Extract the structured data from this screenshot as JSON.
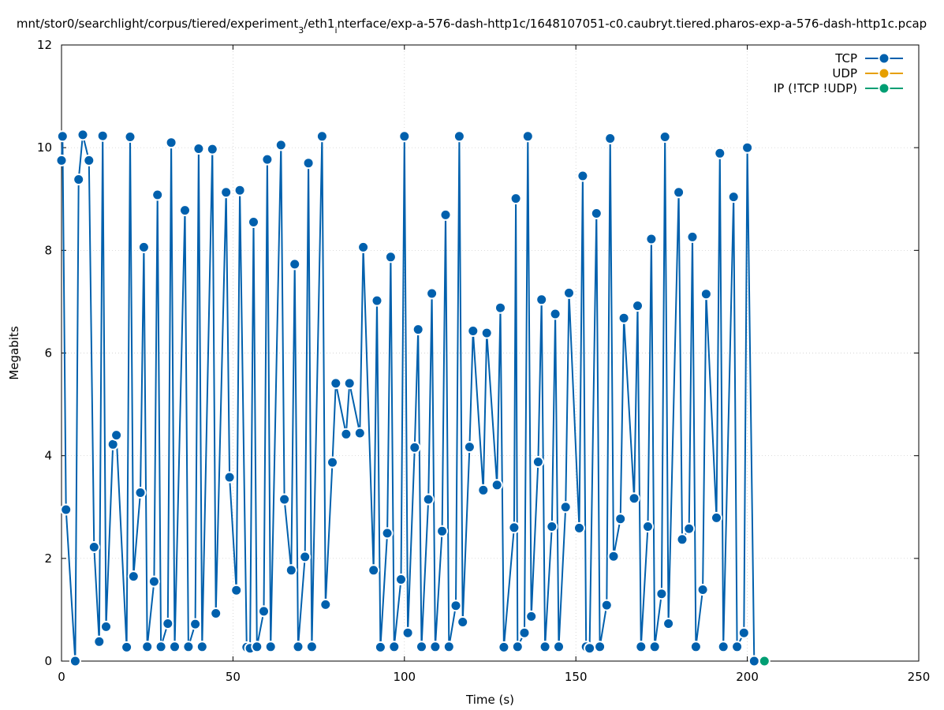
{
  "chart_data": {
    "type": "line",
    "title": "mnt/stor0/searchlight/corpus/tiered/experiment_3/eth1_interface/exp-a-576-dash-http1c/1648107051-c0.caubryt.tiered.pharos-exp-a-576-dash-http1c.pcap",
    "title_parts": {
      "pre": "mnt/stor0/searchlight/corpus/tiered/experiment",
      "sub1": "3",
      "mid": "/eth1",
      "sub2": "i",
      "post": "nterface/exp-a-576-dash-http1c/1648107051-c0.caubryt.tiered.pharos-exp-a-576-dash-http1c.pcap"
    },
    "xlabel": "Time (s)",
    "ylabel": "Megabits",
    "xlim": [
      0,
      250
    ],
    "ylim": [
      0,
      12
    ],
    "x_ticks": [
      "0",
      "50",
      "100",
      "150",
      "200",
      "250"
    ],
    "y_ticks": [
      "0",
      "2",
      "4",
      "6",
      "8",
      "10",
      "12"
    ],
    "grid": true,
    "legend_position": "top-right",
    "series": [
      {
        "name": "TCP",
        "color": "#0060ad",
        "points": [
          [
            0,
            9.75
          ],
          [
            0.3,
            10.22
          ],
          [
            1.3,
            2.95
          ],
          [
            4,
            0
          ],
          [
            5,
            9.38
          ],
          [
            6.2,
            10.25
          ],
          [
            8,
            9.75
          ],
          [
            9.5,
            2.22
          ],
          [
            11,
            0.38
          ],
          [
            12,
            10.23
          ],
          [
            13,
            0.67
          ],
          [
            15,
            4.22
          ],
          [
            16,
            4.4
          ],
          [
            19,
            0.27
          ],
          [
            20,
            10.21
          ],
          [
            21,
            1.65
          ],
          [
            23,
            3.28
          ],
          [
            24,
            8.06
          ],
          [
            25,
            0.28
          ],
          [
            27,
            1.55
          ],
          [
            28,
            9.08
          ],
          [
            29,
            0.28
          ],
          [
            31,
            0.73
          ],
          [
            32,
            10.1
          ],
          [
            33,
            0.28
          ],
          [
            36,
            8.78
          ],
          [
            37,
            0.28
          ],
          [
            39,
            0.72
          ],
          [
            40,
            9.98
          ],
          [
            41,
            0.28
          ],
          [
            44,
            9.97
          ],
          [
            45,
            0.93
          ],
          [
            48,
            9.13
          ],
          [
            49,
            3.58
          ],
          [
            51,
            1.38
          ],
          [
            52,
            9.17
          ],
          [
            54,
            0.27
          ],
          [
            55,
            0.25
          ],
          [
            56,
            8.55
          ],
          [
            57,
            0.28
          ],
          [
            59,
            0.97
          ],
          [
            60,
            9.77
          ],
          [
            61,
            0.28
          ],
          [
            64,
            10.05
          ],
          [
            65,
            3.15
          ],
          [
            67,
            1.77
          ],
          [
            68,
            7.73
          ],
          [
            69,
            0.28
          ],
          [
            71,
            2.03
          ],
          [
            72,
            9.7
          ],
          [
            73,
            0.28
          ],
          [
            76,
            10.22
          ],
          [
            77,
            1.1
          ],
          [
            79,
            3.87
          ],
          [
            80,
            5.41
          ],
          [
            83,
            4.42
          ],
          [
            84,
            5.41
          ],
          [
            87,
            4.44
          ],
          [
            88,
            8.06
          ],
          [
            91,
            1.77
          ],
          [
            92,
            7.02
          ],
          [
            93,
            0.27
          ],
          [
            95,
            2.49
          ],
          [
            96,
            7.87
          ],
          [
            97,
            0.28
          ],
          [
            99,
            1.59
          ],
          [
            100,
            10.22
          ],
          [
            101,
            0.55
          ],
          [
            103,
            4.16
          ],
          [
            104,
            6.46
          ],
          [
            105,
            0.28
          ],
          [
            107,
            3.15
          ],
          [
            108,
            7.16
          ],
          [
            109,
            0.28
          ],
          [
            111,
            2.53
          ],
          [
            112,
            8.69
          ],
          [
            113,
            0.28
          ],
          [
            115,
            1.08
          ],
          [
            116,
            10.22
          ],
          [
            117,
            0.76
          ],
          [
            119,
            4.17
          ],
          [
            120,
            6.43
          ],
          [
            123,
            3.33
          ],
          [
            124,
            6.39
          ],
          [
            127,
            3.43
          ],
          [
            128,
            6.88
          ],
          [
            129,
            0.27
          ],
          [
            132,
            2.6
          ],
          [
            132.5,
            9.01
          ],
          [
            133,
            0.28
          ],
          [
            135,
            0.55
          ],
          [
            136,
            10.22
          ],
          [
            137,
            0.87
          ],
          [
            139,
            3.88
          ],
          [
            140,
            7.04
          ],
          [
            141,
            0.28
          ],
          [
            143,
            2.62
          ],
          [
            144,
            6.76
          ],
          [
            145,
            0.28
          ],
          [
            147,
            3.0
          ],
          [
            148,
            7.17
          ],
          [
            151,
            2.59
          ],
          [
            152,
            9.45
          ],
          [
            153,
            0.28
          ],
          [
            154,
            0.25
          ],
          [
            156,
            8.72
          ],
          [
            157,
            0.28
          ],
          [
            159,
            1.09
          ],
          [
            160,
            10.18
          ],
          [
            161,
            2.04
          ],
          [
            163,
            2.77
          ],
          [
            164,
            6.68
          ],
          [
            167,
            3.17
          ],
          [
            168,
            6.92
          ],
          [
            169,
            0.28
          ],
          [
            171,
            2.62
          ],
          [
            172,
            8.22
          ],
          [
            173,
            0.28
          ],
          [
            175,
            1.31
          ],
          [
            176,
            10.21
          ],
          [
            177,
            0.73
          ],
          [
            180,
            9.13
          ],
          [
            181,
            2.37
          ],
          [
            183,
            2.58
          ],
          [
            184,
            8.26
          ],
          [
            185,
            0.28
          ],
          [
            187,
            1.39
          ],
          [
            188,
            7.15
          ],
          [
            191,
            2.79
          ],
          [
            192,
            9.89
          ],
          [
            193,
            0.28
          ],
          [
            196,
            9.04
          ],
          [
            197,
            0.28
          ],
          [
            199,
            0.55
          ],
          [
            200,
            10.0
          ],
          [
            202,
            0
          ]
        ]
      },
      {
        "name": "UDP",
        "color": "#e69f00",
        "points": []
      },
      {
        "name": "IP (!TCP  !UDP)",
        "color": "#009e73",
        "points": [
          [
            205,
            0
          ]
        ]
      }
    ]
  }
}
